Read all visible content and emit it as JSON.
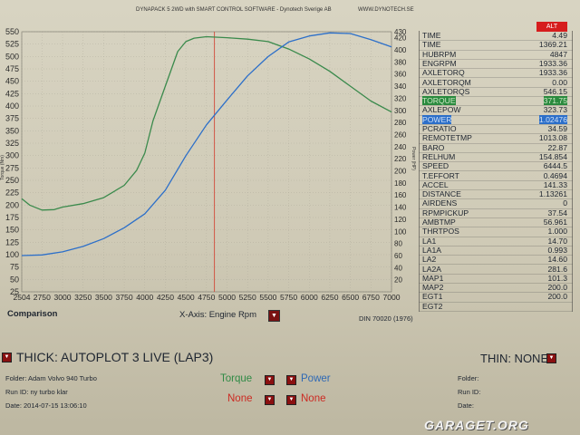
{
  "header": {
    "title": "DYNAPACK 5 2WD with SMART CONTROL SOFTWARE - Dynotech Sverige AB",
    "site": "WWW.DYNOTECH.SE",
    "alt_badge": "ALT"
  },
  "params": [
    {
      "name": "TIME",
      "value": "4.49"
    },
    {
      "name": "TIME",
      "value": "1369.21"
    },
    {
      "name": "HUBRPM",
      "value": "4847"
    },
    {
      "name": "ENGRPM",
      "value": "1933.36"
    },
    {
      "name": "AXLETORQ",
      "value": "1933.36"
    },
    {
      "name": "AXLETORQM",
      "value": "0.00"
    },
    {
      "name": "AXLETORQS",
      "value": "546.15"
    },
    {
      "name": "TORQUE",
      "value": "371.75"
    },
    {
      "name": "AXLEPOW",
      "value": "323.73"
    },
    {
      "name": "POWER",
      "value": "1.02476"
    },
    {
      "name": "PCRATIO",
      "value": "34.59"
    },
    {
      "name": "REMOTETMP",
      "value": "1013.08"
    },
    {
      "name": "BARO",
      "value": "22.87"
    },
    {
      "name": "RELHUM",
      "value": "154.854"
    },
    {
      "name": "SPEED",
      "value": "6444.5"
    },
    {
      "name": "T.EFFORT",
      "value": "0.4694"
    },
    {
      "name": "ACCEL",
      "value": "141.33"
    },
    {
      "name": "DISTANCE",
      "value": "1.13261"
    },
    {
      "name": "AIRDENS",
      "value": "0"
    },
    {
      "name": "RPMPICKUP",
      "value": "37.54"
    },
    {
      "name": "AMBTMP",
      "value": "56.961"
    },
    {
      "name": "THRTPOS",
      "value": "1.000"
    },
    {
      "name": "LA1",
      "value": "14.70"
    },
    {
      "name": "LA1A",
      "value": "0.993"
    },
    {
      "name": "LA2",
      "value": "14.60"
    },
    {
      "name": "LA2A",
      "value": "281.6"
    },
    {
      "name": "MAP1",
      "value": "101.3"
    },
    {
      "name": "MAP2",
      "value": "200.0"
    },
    {
      "name": "EGT1",
      "value": "200.0"
    },
    {
      "name": "EGT2",
      "value": ""
    }
  ],
  "chart_data": {
    "type": "line",
    "xlabel": "X-Axis: Engine Rpm",
    "ylabel_left": "Torque (Nm)",
    "ylabel_right": "Power (HP)",
    "x_ticks": [
      "2504",
      "2750",
      "3000",
      "3250",
      "3500",
      "3750",
      "4000",
      "4250",
      "4500",
      "4750",
      "5000",
      "5250",
      "5500",
      "5750",
      "6000",
      "6250",
      "6500",
      "6750",
      "7000"
    ],
    "y_left_ticks": [
      "550",
      "525",
      "500",
      "475",
      "450",
      "425",
      "400",
      "375",
      "350",
      "325",
      "300",
      "275",
      "250",
      "225",
      "200",
      "175",
      "150",
      "125",
      "100",
      "75",
      "50",
      "25"
    ],
    "y_right_ticks": [
      "430",
      "420",
      "400",
      "380",
      "360",
      "340",
      "320",
      "300",
      "280",
      "260",
      "240",
      "220",
      "200",
      "180",
      "160",
      "140",
      "120",
      "100",
      "80",
      "60",
      "40",
      "20"
    ],
    "xlim": [
      2504,
      7000
    ],
    "ylim_left": [
      25,
      550
    ],
    "ylim_right": [
      0,
      430
    ],
    "cursor_x": 4847,
    "series": [
      {
        "name": "Torque",
        "axis": "left",
        "color": "#3a8a4c",
        "x": [
          2504,
          2600,
          2750,
          2900,
          3000,
          3250,
          3500,
          3750,
          3900,
          4000,
          4100,
          4250,
          4400,
          4500,
          4600,
          4750,
          5000,
          5250,
          5500,
          5750,
          6000,
          6250,
          6500,
          6750,
          7000
        ],
        "y": [
          213,
          200,
          190,
          191,
          196,
          203,
          215,
          240,
          270,
          305,
          370,
          440,
          510,
          530,
          537,
          540,
          538,
          535,
          530,
          515,
          495,
          470,
          440,
          410,
          388
        ]
      },
      {
        "name": "Power",
        "axis": "right",
        "color": "#2c6fc9",
        "x": [
          2504,
          2750,
          3000,
          3250,
          3500,
          3750,
          4000,
          4250,
          4500,
          4750,
          5000,
          5250,
          5500,
          5750,
          6000,
          6250,
          6500,
          6750,
          7000
        ],
        "y": [
          60,
          61,
          66,
          75,
          88,
          106,
          129,
          168,
          225,
          276,
          317,
          357,
          389,
          413,
          423,
          428,
          427,
          417,
          405
        ]
      }
    ]
  },
  "bottom": {
    "comparison": "Comparison",
    "xaxis_label": "X-Axis: Engine Rpm",
    "din": "DIN 70020 (1976)",
    "thick": "THICK: AUTOPLOT 3 LIVE (LAP3)",
    "thin": "THIN: NONE",
    "left_info": {
      "folder": "Folder:  Adam Volvo 940 Turbo",
      "runid": "Run ID:  ny turbo klar",
      "date": "Date:  2014-07-15 13:06:10"
    },
    "right_info": {
      "folder": "Folder:",
      "runid": "Run ID:",
      "date": "Date:"
    },
    "torque_label": "Torque",
    "power_label": "Power",
    "none_left": "None",
    "none_right": "None"
  },
  "watermark": "GARAGET.ORG",
  "colors": {
    "torque": "#3a8a4c",
    "power": "#2c6fc9",
    "cursor": "#d24a3a",
    "alt": "#d61d1d"
  }
}
